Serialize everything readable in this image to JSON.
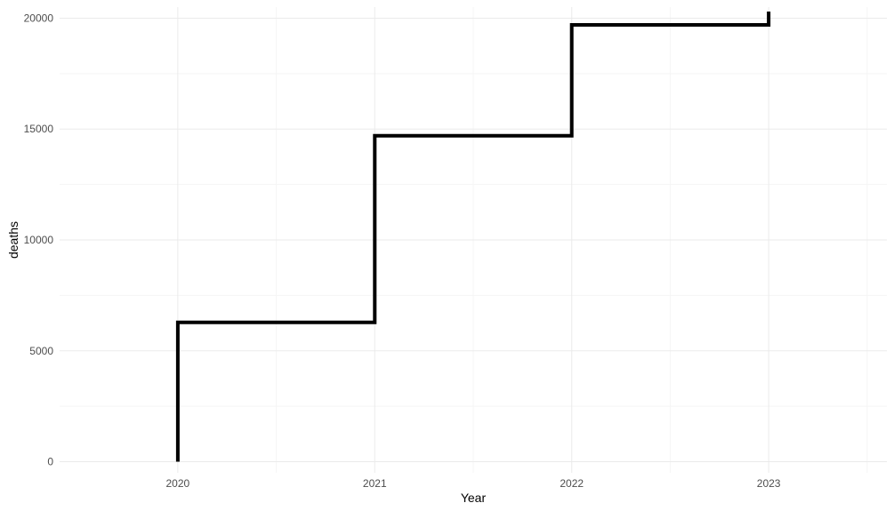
{
  "chart_data": {
    "type": "line",
    "step": "hv",
    "title": "",
    "xlabel": "Year",
    "ylabel": "deaths",
    "xlim": [
      2019.4,
      2023.6
    ],
    "ylim": [
      -500,
      20500
    ],
    "x_ticks": [
      2020,
      2021,
      2022,
      2023
    ],
    "x_tick_labels": [
      "2020",
      "2021",
      "2022",
      "2023"
    ],
    "y_major_ticks": [
      0,
      5000,
      10000,
      15000,
      20000
    ],
    "y_tick_labels": [
      "0",
      "5000",
      "10000",
      "15000",
      "20000"
    ],
    "y_minor_ticks": [
      2500,
      7500,
      12500,
      17500
    ],
    "x_minor_ticks": [
      2020.5,
      2021.5,
      2022.5,
      2023.5
    ],
    "grid": true,
    "legend": "none",
    "series": [
      {
        "color": "#000000",
        "points": [
          {
            "x": 2020,
            "y": 0
          },
          {
            "x": 2020,
            "y": 6280
          },
          {
            "x": 2021,
            "y": 6280
          },
          {
            "x": 2021,
            "y": 14700
          },
          {
            "x": 2022,
            "y": 14700
          },
          {
            "x": 2022,
            "y": 19700
          },
          {
            "x": 2023,
            "y": 19700
          },
          {
            "x": 2023,
            "y": 20300
          }
        ]
      }
    ]
  },
  "colors": {
    "background": "#ffffff",
    "grid_major": "#ebebeb",
    "grid_minor": "#f5f5f5",
    "line": "#000000",
    "tick_text": "#4d4d4d",
    "title_text": "#000000"
  }
}
